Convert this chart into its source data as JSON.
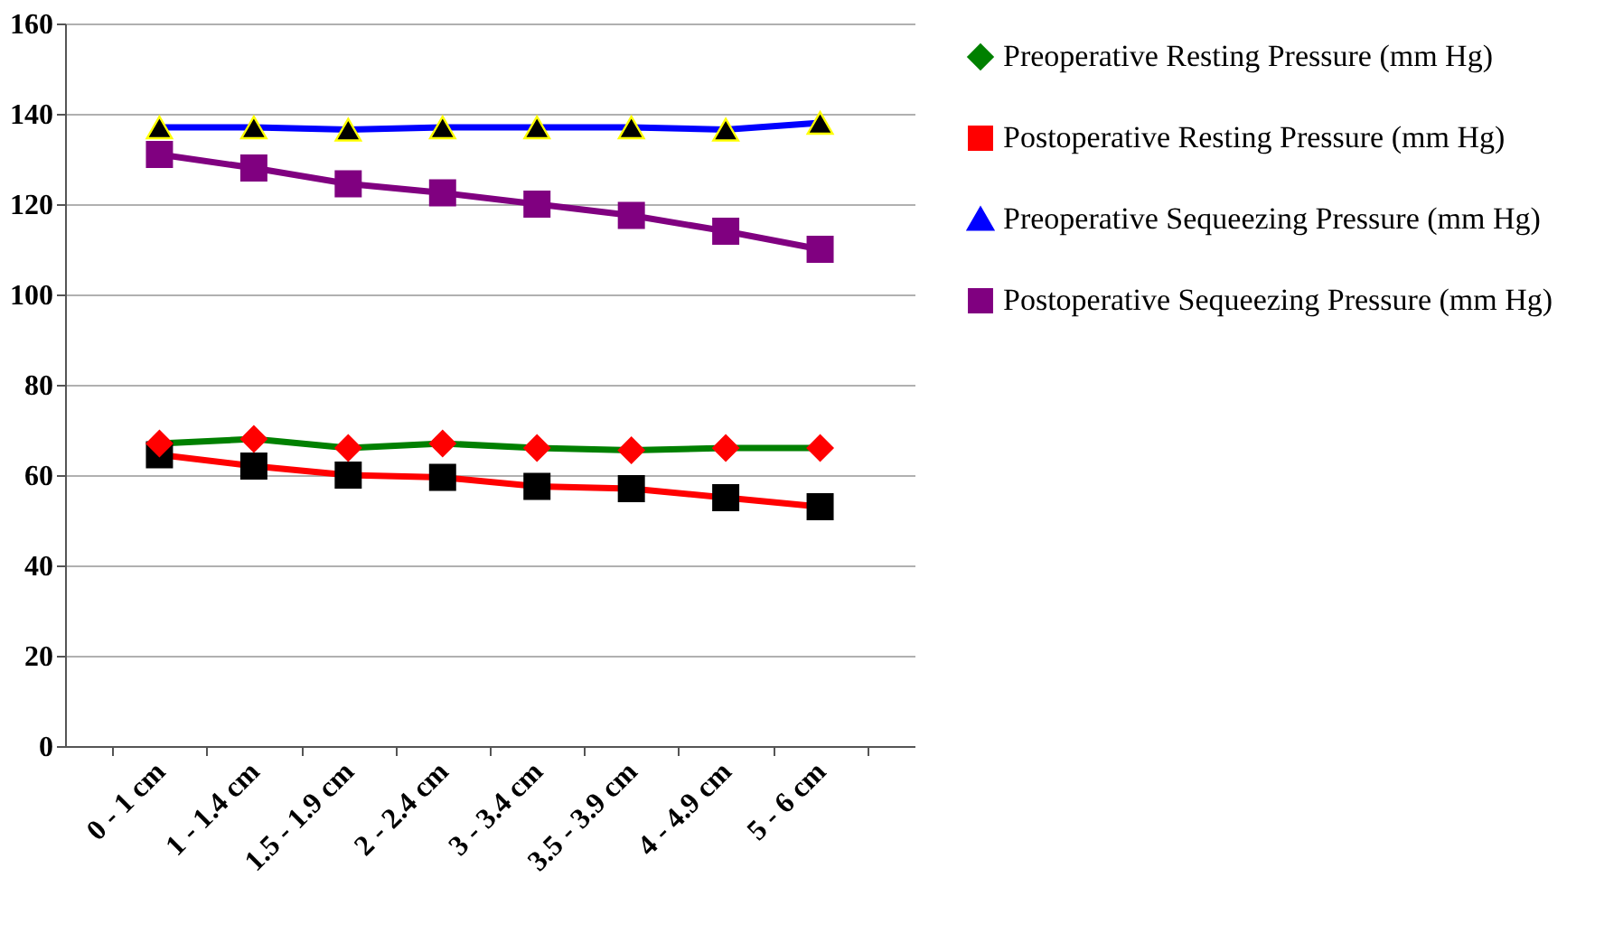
{
  "chart_data": {
    "type": "line",
    "categories": [
      "0 - 1 cm",
      "1 - 1.4 cm",
      "1.5 - 1.9 cm",
      "2 - 2.4 cm",
      "3 - 3.4 cm",
      "3.5 - 3.9 cm",
      "4 - 4.9 cm",
      "5 - 6 cm"
    ],
    "series": [
      {
        "name": "Preoperative Resting Pressure (mm Hg)",
        "color": "#008000",
        "marker": "diamond",
        "colors": [
          "#ff0000",
          "#ff0000",
          "#ff0000",
          "#ff0000",
          "#ff0000",
          "#ff0000",
          "#ff0000",
          "#ff0000"
        ],
        "values": [
          67,
          68,
          66,
          67,
          66,
          65.5,
          66,
          66
        ]
      },
      {
        "name": "Postoperative Resting Pressure (mm Hg)",
        "color": "#ff0000",
        "marker": "square",
        "colors": [
          "#000000",
          "#000000",
          "#000000",
          "#000000",
          "#000000",
          "#000000",
          "#000000",
          "#000000"
        ],
        "values": [
          64.5,
          62,
          60,
          59.5,
          57.5,
          57,
          55,
          53
        ]
      },
      {
        "name": "Preoperative Sequeezing Pressure (mm Hg)",
        "color": "#0000ff",
        "marker": "triangle",
        "colors": [
          "#000000",
          "#000000",
          "#000000",
          "#000000",
          "#000000",
          "#000000",
          "#000000",
          "#000000"
        ],
        "values": [
          137,
          137,
          136.5,
          137,
          137,
          137,
          136.5,
          138
        ]
      },
      {
        "name": "Postoperative Sequeezing Pressure (mm Hg)",
        "color": "#800080",
        "marker": "square",
        "colors": [
          "#800080",
          "#800080",
          "#800080",
          "#800080",
          "#800080",
          "#800080",
          "#800080",
          "#800080"
        ],
        "values": [
          131,
          128,
          124.5,
          122.5,
          120,
          117.5,
          114,
          110
        ]
      }
    ],
    "ylim": [
      0,
      160
    ],
    "yticks": [
      0,
      20,
      40,
      60,
      80,
      100,
      120,
      140,
      160
    ],
    "grid": "y",
    "legend": "right"
  }
}
